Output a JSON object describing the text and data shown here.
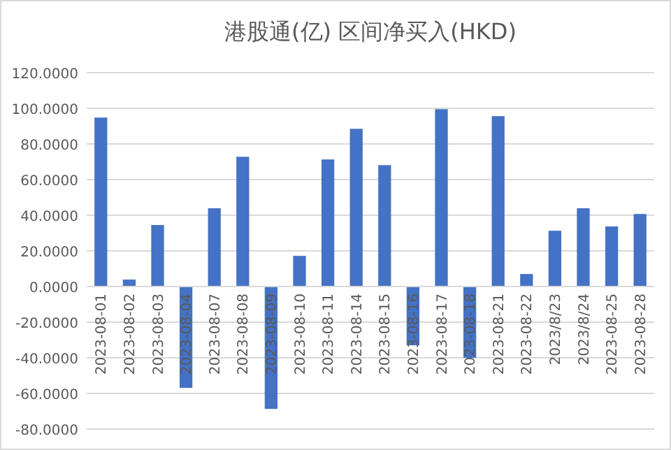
{
  "chart_data": {
    "type": "bar",
    "title": "港股通(亿) 区间净买入(HKD)",
    "categories": [
      "2023-08-01",
      "2023-08-02",
      "2023-08-03",
      "2023-08-04",
      "2023-08-07",
      "2023-08-08",
      "2023-08-09",
      "2023-08-10",
      "2023-08-11",
      "2023-08-14",
      "2023-08-15",
      "2023-08-16",
      "2023-08-17",
      "2023-08-18",
      "2023-08-21",
      "2023-08-22",
      "2023/8/23",
      "2023/8/24",
      "2023-08-25",
      "2023-08-28"
    ],
    "values": [
      94.8,
      3.9,
      34.5,
      -56.9,
      43.9,
      72.8,
      -68.7,
      17.2,
      71.3,
      88.5,
      68.1,
      -33,
      99.5,
      -40,
      95.6,
      7.0,
      31.3,
      43.9,
      33.7,
      40.7
    ],
    "color": "#4472c4",
    "ylim": [
      -80,
      120
    ],
    "yticks": [
      {
        "value": -80,
        "label": "-80.0000"
      },
      {
        "value": -60,
        "label": "-60.0000"
      },
      {
        "value": -40,
        "label": "-40.0000"
      },
      {
        "value": -20,
        "label": "-20.0000"
      },
      {
        "value": 0,
        "label": "0.0000"
      },
      {
        "value": 20,
        "label": "20.0000"
      },
      {
        "value": 40,
        "label": "40.0000"
      },
      {
        "value": 60,
        "label": "60.0000"
      },
      {
        "value": 80,
        "label": "80.0000"
      },
      {
        "value": 100,
        "label": "100.0000"
      },
      {
        "value": 120,
        "label": "120.0000"
      }
    ],
    "grid": "y"
  }
}
